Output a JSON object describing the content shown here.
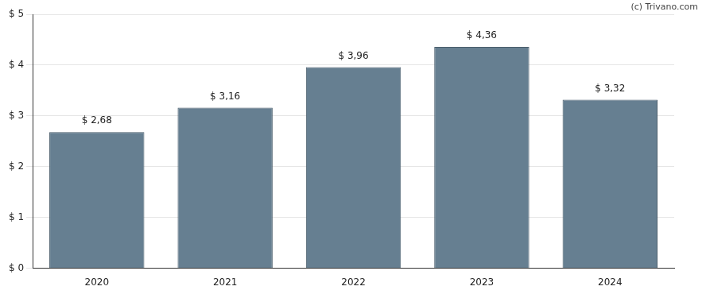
{
  "chart_data": {
    "type": "bar",
    "annotations": [
      "(c) Trivano.com"
    ],
    "categories": [
      "2020",
      "2021",
      "2022",
      "2023",
      "2024"
    ],
    "values": [
      2.68,
      3.16,
      3.96,
      4.36,
      3.32
    ],
    "value_labels": [
      "$ 2,68",
      "$ 3,16",
      "$ 3,96",
      "$ 4,36",
      "$ 3,32"
    ],
    "color": "#667f91",
    "ylim": [
      0,
      5
    ],
    "yticks": [
      {
        "value": 0,
        "label": "$ 0"
      },
      {
        "value": 1,
        "label": "$ 1"
      },
      {
        "value": 2,
        "label": "$ 2"
      },
      {
        "value": 3,
        "label": "$ 3"
      },
      {
        "value": 4,
        "label": "$ 4"
      },
      {
        "value": 5,
        "label": "$ 5"
      }
    ],
    "grid": true,
    "data_labels": true
  }
}
